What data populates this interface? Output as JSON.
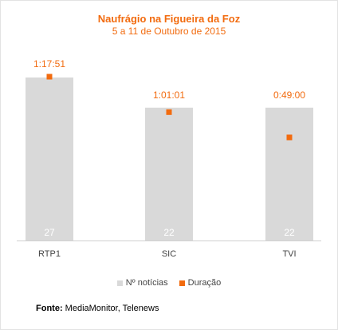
{
  "chart_data": {
    "type": "bar",
    "title": "Naufrágio na Figueira da Foz",
    "subtitle": "5 a 11 de Outubro de 2015",
    "categories": [
      "RTP1",
      "SIC",
      "TVI"
    ],
    "series": [
      {
        "name": "Nº notícias",
        "values": [
          27,
          22,
          22
        ],
        "color": "#d9d9d9",
        "label_color": "#ffffff"
      },
      {
        "name": "Duração",
        "values_seconds": [
          4671,
          3661,
          2940
        ],
        "labels": [
          "1:17:51",
          "1:01:01",
          "0:49:00"
        ],
        "color": "#f26b0f"
      }
    ],
    "ylim_count": [
      0,
      27.5
    ],
    "ylim_seconds": [
      0,
      5400
    ],
    "grid": false,
    "legend_position": "bottom-center"
  },
  "source": {
    "label": "Fonte:",
    "text": "MediaMonitor, Telenews"
  }
}
